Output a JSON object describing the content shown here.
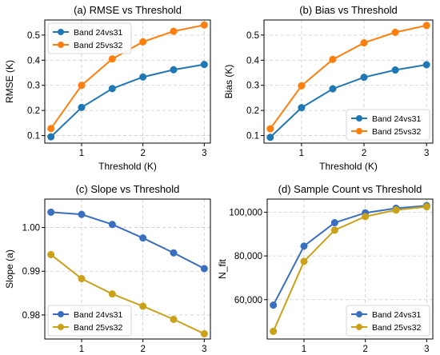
{
  "chart_data": [
    {
      "type": "line",
      "title": "(a) RMSE vs Threshold",
      "xlabel": "Threshold (K)",
      "ylabel": "RMSE (K)",
      "xlim": [
        0.4,
        3.1
      ],
      "ylim": [
        0.07,
        0.56
      ],
      "xticks": [
        1,
        2,
        3
      ],
      "yticks": [
        0.1,
        0.2,
        0.3,
        0.4,
        0.5
      ],
      "ytick_labels": [
        "0.1",
        "0.2",
        "0.3",
        "0.4",
        "0.5"
      ],
      "grid": true,
      "legend_position": "top-left",
      "x": [
        0.5,
        1.0,
        1.5,
        2.0,
        2.5,
        3.0
      ],
      "series": [
        {
          "name": "Band 24vs31",
          "color": "#1f77b4",
          "values": [
            0.095,
            0.212,
            0.287,
            0.333,
            0.362,
            0.383
          ]
        },
        {
          "name": "Band 25vs32",
          "color": "#ff7f0e",
          "values": [
            0.128,
            0.3,
            0.405,
            0.473,
            0.515,
            0.54
          ]
        }
      ]
    },
    {
      "type": "line",
      "title": "(b) Bias vs Threshold",
      "xlabel": "Threshold (K)",
      "ylabel": "Bias (K)",
      "xlim": [
        0.4,
        3.1
      ],
      "ylim": [
        0.07,
        0.56
      ],
      "xticks": [
        1,
        2,
        3
      ],
      "yticks": [
        0.1,
        0.2,
        0.3,
        0.4,
        0.5
      ],
      "ytick_labels": [
        "0.1",
        "0.2",
        "0.3",
        "0.4",
        "0.5"
      ],
      "grid": true,
      "legend_position": "bottom-right",
      "x": [
        0.5,
        1.0,
        1.5,
        2.0,
        2.5,
        3.0
      ],
      "series": [
        {
          "name": "Band 24vs31",
          "color": "#1f77b4",
          "values": [
            0.093,
            0.211,
            0.286,
            0.332,
            0.361,
            0.382
          ]
        },
        {
          "name": "Band 25vs32",
          "color": "#ff7f0e",
          "values": [
            0.127,
            0.298,
            0.403,
            0.469,
            0.511,
            0.538
          ]
        }
      ]
    },
    {
      "type": "line",
      "title": "(c) Slope vs Threshold",
      "xlabel": "Threshold (K)",
      "ylabel": "Slope (a)",
      "xlim": [
        0.4,
        3.1
      ],
      "ylim": [
        0.9745,
        1.0065
      ],
      "xticks": [
        1,
        2,
        3
      ],
      "yticks": [
        0.98,
        0.99,
        1.0
      ],
      "ytick_labels": [
        "0.98",
        "0.99",
        "1.00"
      ],
      "grid": true,
      "legend_position": "bottom-left",
      "x": [
        0.5,
        1.0,
        1.5,
        2.0,
        2.5,
        3.0
      ],
      "series": [
        {
          "name": "Band 24vs31",
          "color": "#3a6fc0",
          "values": [
            1.0035,
            1.003,
            1.0007,
            0.9976,
            0.9942,
            0.9906
          ]
        },
        {
          "name": "Band 25vs32",
          "color": "#c9a21a",
          "values": [
            0.9938,
            0.9883,
            0.9848,
            0.982,
            0.979,
            0.9757
          ]
        }
      ]
    },
    {
      "type": "line",
      "title": "(d) Sample Count vs Threshold",
      "xlabel": "Threshold (K)",
      "ylabel": "N_fit",
      "xlim": [
        0.4,
        3.1
      ],
      "ylim": [
        42000,
        106000
      ],
      "xticks": [
        1,
        2,
        3
      ],
      "yticks": [
        60000,
        80000,
        100000
      ],
      "ytick_labels": [
        "60,000",
        "80,000",
        "100,000"
      ],
      "grid": true,
      "legend_position": "bottom-right",
      "x": [
        0.5,
        1.0,
        1.5,
        2.0,
        2.5,
        3.0
      ],
      "series": [
        {
          "name": "Band 24vs31",
          "color": "#3a6fc0",
          "values": [
            57500,
            84500,
            95200,
            99700,
            101800,
            103000
          ]
        },
        {
          "name": "Band 25vs32",
          "color": "#c9a21a",
          "values": [
            45500,
            77500,
            91800,
            98000,
            101000,
            102500
          ]
        }
      ]
    }
  ]
}
